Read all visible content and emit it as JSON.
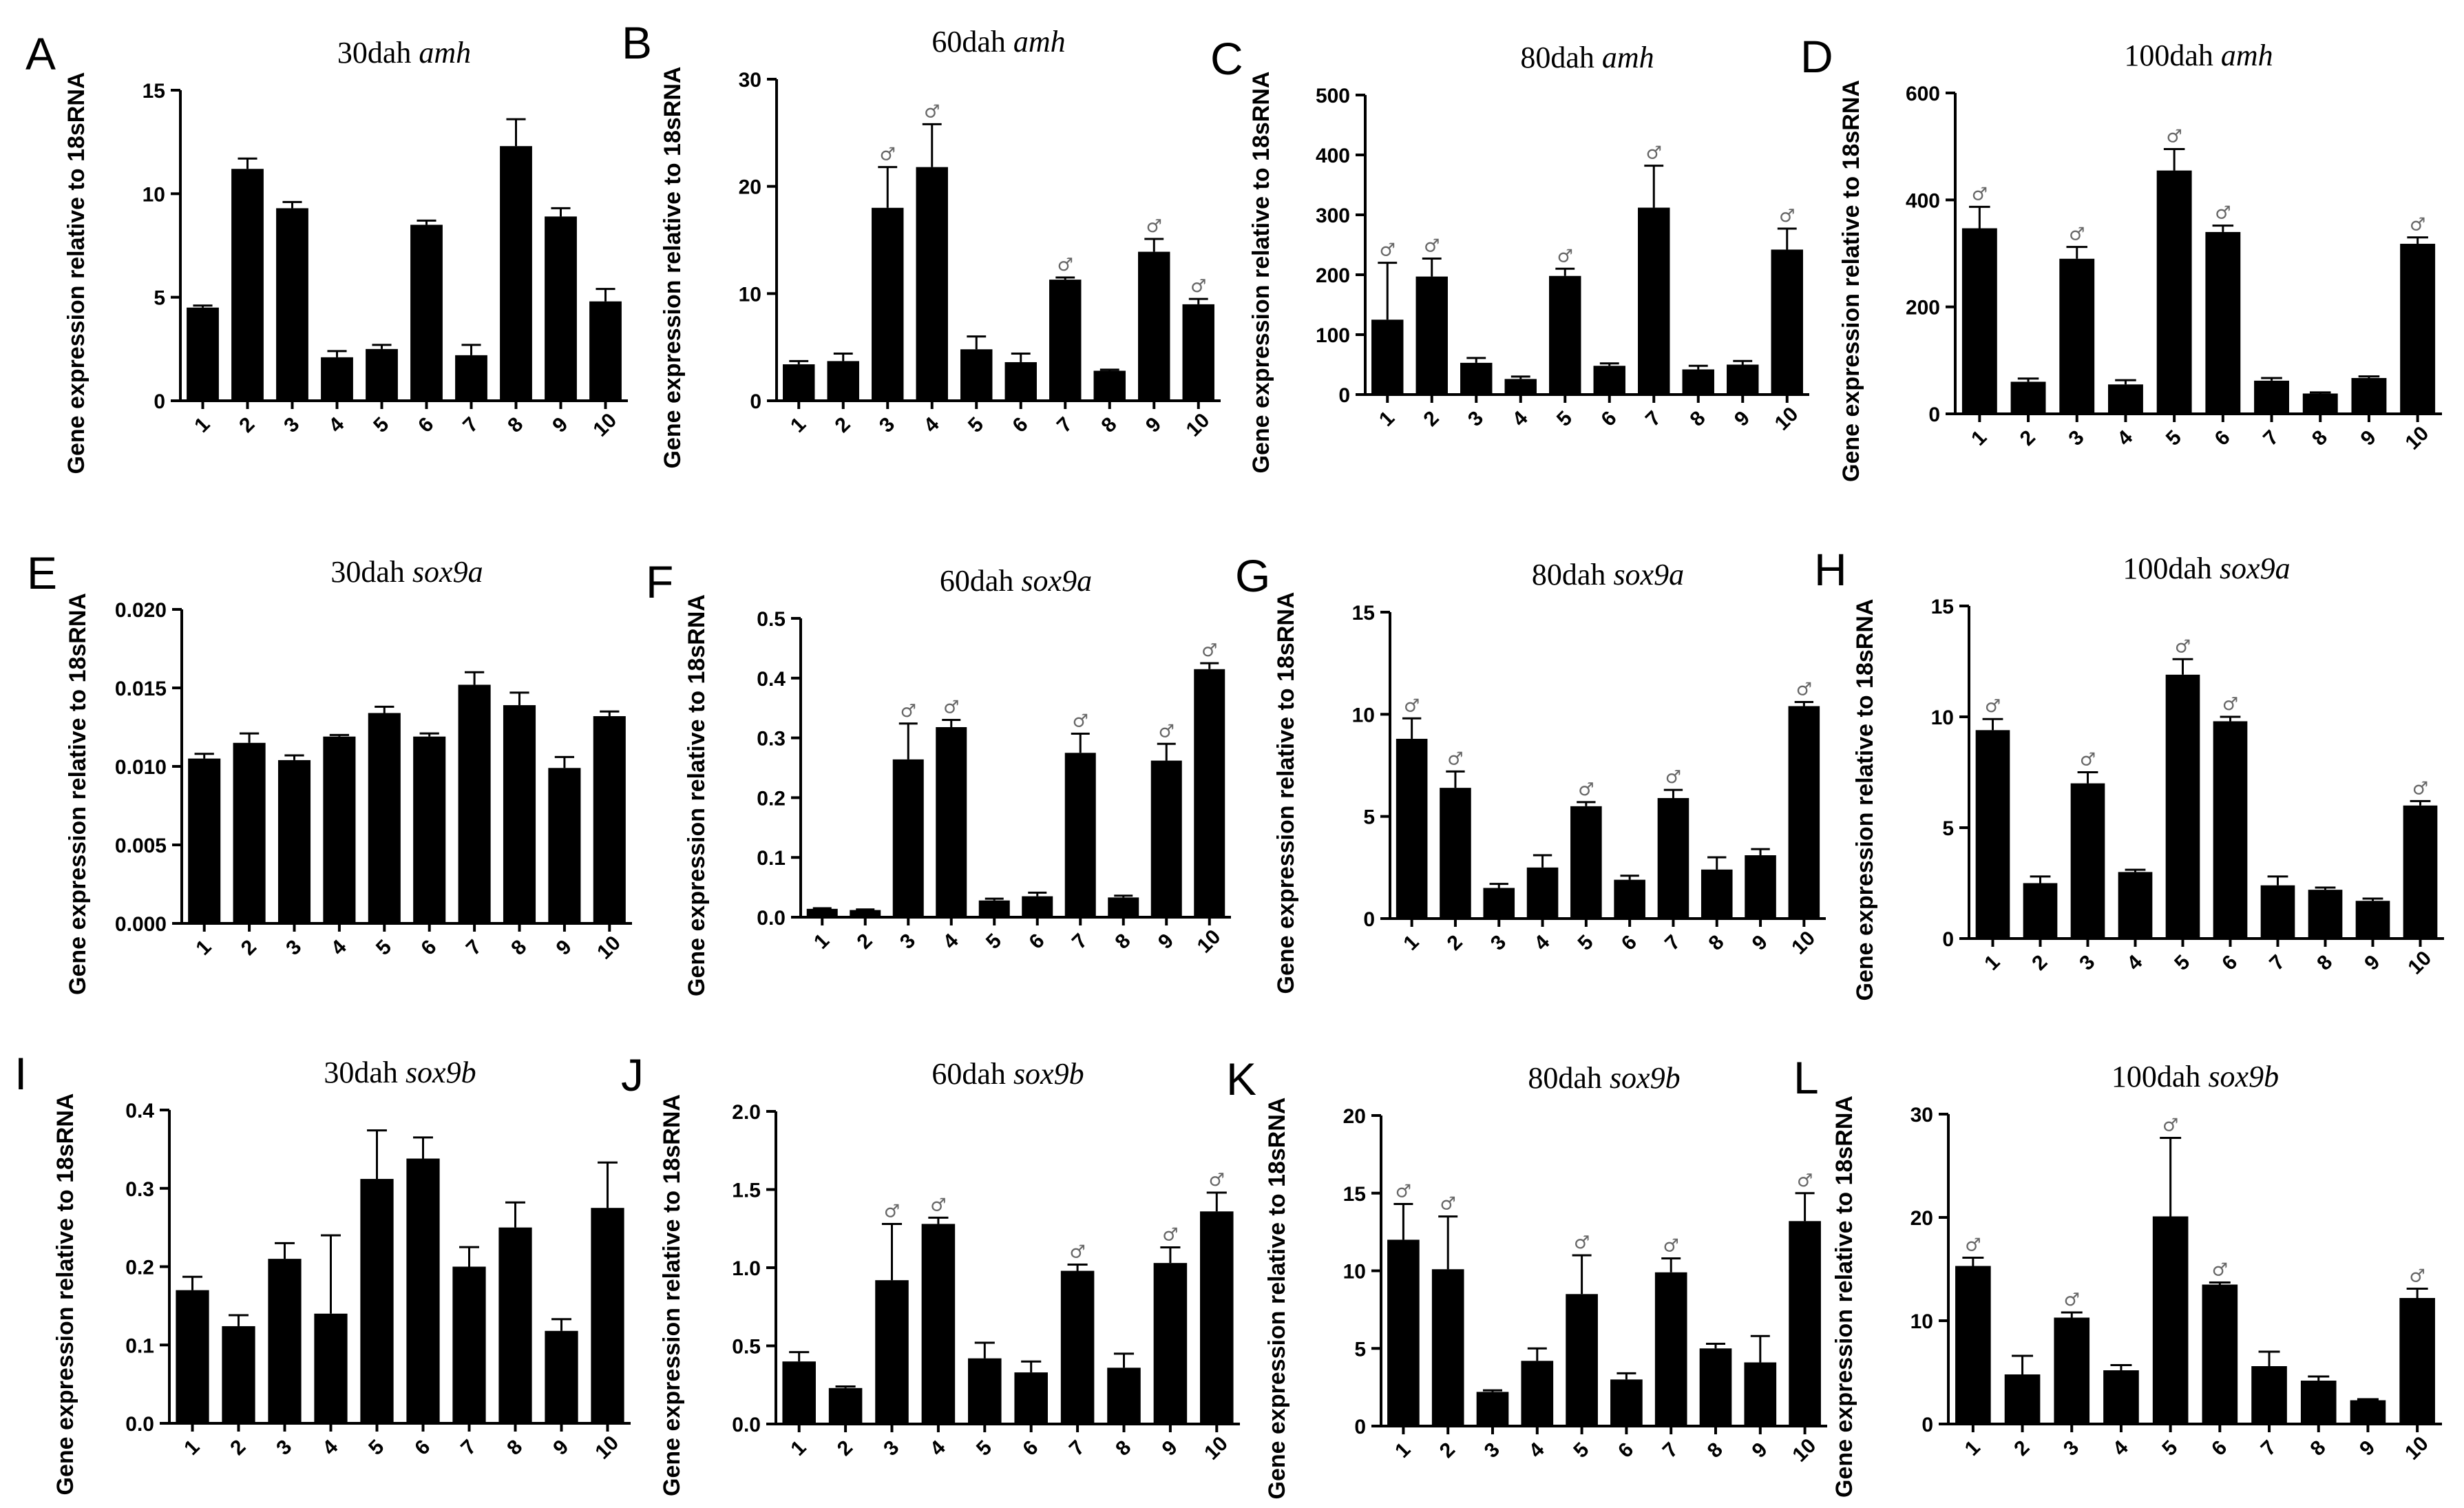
{
  "figure": {
    "ylabel": "Gene expression relative to 18sRNA",
    "male_symbol": "♂",
    "colors": {
      "bar": "#000000",
      "axis": "#000000",
      "marker": "#666666"
    }
  },
  "chart_data": [
    {
      "panel": "A",
      "type": "bar",
      "title_prefix": "30dah",
      "gene": "amh",
      "categories": [
        "1",
        "2",
        "3",
        "4",
        "5",
        "6",
        "7",
        "8",
        "9",
        "10"
      ],
      "values": [
        4.5,
        11.2,
        9.3,
        2.1,
        2.5,
        8.5,
        2.2,
        12.3,
        8.9,
        4.8
      ],
      "errors": [
        0.1,
        0.5,
        0.3,
        0.3,
        0.2,
        0.2,
        0.5,
        1.3,
        0.4,
        0.6
      ],
      "male": [],
      "ylim": [
        0,
        15
      ],
      "yticks": [
        0,
        5,
        10,
        15
      ],
      "ytick_labels": [
        "0",
        "5",
        "10",
        "15"
      ],
      "ylabel": "Gene expression relative to 18sRNA"
    },
    {
      "panel": "B",
      "type": "bar",
      "title_prefix": "60dah",
      "gene": "amh",
      "categories": [
        "1",
        "2",
        "3",
        "4",
        "5",
        "6",
        "7",
        "8",
        "9",
        "10"
      ],
      "values": [
        3.4,
        3.7,
        18.0,
        21.8,
        4.8,
        3.6,
        11.3,
        2.8,
        13.9,
        9.0
      ],
      "errors": [
        0.3,
        0.7,
        3.8,
        4.0,
        1.2,
        0.8,
        0.2,
        0.1,
        1.2,
        0.5
      ],
      "male": [
        3,
        4,
        7,
        9,
        10
      ],
      "ylim": [
        0,
        30
      ],
      "yticks": [
        0,
        10,
        20,
        30
      ],
      "ytick_labels": [
        "0",
        "10",
        "20",
        "30"
      ],
      "ylabel": "Gene expression relative to 18sRNA"
    },
    {
      "panel": "C",
      "type": "bar",
      "title_prefix": "80dah",
      "gene": "amh",
      "categories": [
        "1",
        "2",
        "3",
        "4",
        "5",
        "6",
        "7",
        "8",
        "9",
        "10"
      ],
      "values": [
        125,
        197,
        53,
        26,
        198,
        48,
        312,
        42,
        50,
        242
      ],
      "errors": [
        95,
        30,
        8,
        4,
        12,
        4,
        70,
        6,
        6,
        35
      ],
      "male": [
        1,
        2,
        5,
        7,
        10
      ],
      "ylim": [
        0,
        500
      ],
      "yticks": [
        0,
        100,
        200,
        300,
        400,
        500
      ],
      "ytick_labels": [
        "0",
        "100",
        "200",
        "300",
        "400",
        "500"
      ],
      "ylabel": "Gene expression relative to 18sRNA"
    },
    {
      "panel": "D",
      "type": "bar",
      "title_prefix": "100dah",
      "gene": "amh",
      "categories": [
        "1",
        "2",
        "3",
        "4",
        "5",
        "6",
        "7",
        "8",
        "9",
        "10"
      ],
      "values": [
        347,
        60,
        290,
        55,
        455,
        340,
        62,
        38,
        67,
        318
      ],
      "errors": [
        40,
        6,
        22,
        8,
        40,
        12,
        5,
        2,
        3,
        12
      ],
      "male": [
        1,
        3,
        5,
        6,
        10
      ],
      "ylim": [
        0,
        600
      ],
      "yticks": [
        0,
        200,
        400,
        600
      ],
      "ytick_labels": [
        "0",
        "200",
        "400",
        "600"
      ],
      "ylabel": "Gene expression relative to 18sRNA"
    },
    {
      "panel": "E",
      "type": "bar",
      "title_prefix": "30dah",
      "gene": "sox9a",
      "categories": [
        "1",
        "2",
        "3",
        "4",
        "5",
        "6",
        "7",
        "8",
        "9",
        "10"
      ],
      "values": [
        0.0105,
        0.0115,
        0.0104,
        0.0119,
        0.0134,
        0.0119,
        0.0152,
        0.0139,
        0.0099,
        0.0132
      ],
      "errors": [
        0.0003,
        0.0006,
        0.0003,
        0.0001,
        0.0004,
        0.0002,
        0.0008,
        0.0008,
        0.0007,
        0.0003
      ],
      "male": [],
      "ylim": [
        0,
        0.02
      ],
      "yticks": [
        0,
        0.005,
        0.01,
        0.015,
        0.02
      ],
      "ytick_labels": [
        "0.000",
        "0.005",
        "0.010",
        "0.015",
        "0.020"
      ],
      "ylabel": "Gene expression relative to 18sRNA"
    },
    {
      "panel": "F",
      "type": "bar",
      "title_prefix": "60dah",
      "gene": "sox9a",
      "categories": [
        "1",
        "2",
        "3",
        "4",
        "5",
        "6",
        "7",
        "8",
        "9",
        "10"
      ],
      "values": [
        0.014,
        0.012,
        0.264,
        0.318,
        0.028,
        0.035,
        0.275,
        0.033,
        0.262,
        0.415
      ],
      "errors": [
        0.001,
        0.001,
        0.06,
        0.012,
        0.003,
        0.006,
        0.032,
        0.003,
        0.028,
        0.01
      ],
      "male": [
        3,
        4,
        7,
        9,
        10
      ],
      "ylim": [
        0,
        0.5
      ],
      "yticks": [
        0,
        0.1,
        0.2,
        0.3,
        0.4,
        0.5
      ],
      "ytick_labels": [
        "0.0",
        "0.1",
        "0.2",
        "0.3",
        "0.4",
        "0.5"
      ],
      "ylabel": "Gene expression relative to 18sRNA"
    },
    {
      "panel": "G",
      "type": "bar",
      "title_prefix": "80dah",
      "gene": "sox9a",
      "categories": [
        "1",
        "2",
        "3",
        "4",
        "5",
        "6",
        "7",
        "8",
        "9",
        "10"
      ],
      "values": [
        8.8,
        6.4,
        1.5,
        2.5,
        5.5,
        1.9,
        5.9,
        2.4,
        3.1,
        10.4
      ],
      "errors": [
        1.0,
        0.8,
        0.2,
        0.6,
        0.2,
        0.2,
        0.4,
        0.6,
        0.3,
        0.2
      ],
      "male": [
        1,
        2,
        5,
        7,
        10
      ],
      "ylim": [
        0,
        15
      ],
      "yticks": [
        0,
        5,
        10,
        15
      ],
      "ytick_labels": [
        "0",
        "5",
        "10",
        "15"
      ],
      "ylabel": "Gene expression relative to 18sRNA"
    },
    {
      "panel": "H",
      "type": "bar",
      "title_prefix": "100dah",
      "gene": "sox9a",
      "categories": [
        "1",
        "2",
        "3",
        "4",
        "5",
        "6",
        "7",
        "8",
        "9",
        "10"
      ],
      "values": [
        9.4,
        2.5,
        7.0,
        3.0,
        11.9,
        9.8,
        2.4,
        2.2,
        1.7,
        6.0
      ],
      "errors": [
        0.5,
        0.3,
        0.5,
        0.1,
        0.7,
        0.2,
        0.4,
        0.1,
        0.1,
        0.2
      ],
      "male": [
        1,
        3,
        5,
        6,
        10
      ],
      "ylim": [
        0,
        15
      ],
      "yticks": [
        0,
        5,
        10,
        15
      ],
      "ytick_labels": [
        "0",
        "5",
        "10",
        "15"
      ],
      "ylabel": "Gene expression relative to 18sRNA"
    },
    {
      "panel": "I",
      "type": "bar",
      "title_prefix": "30dah",
      "gene": "sox9b",
      "categories": [
        "1",
        "2",
        "3",
        "4",
        "5",
        "6",
        "7",
        "8",
        "9",
        "10"
      ],
      "values": [
        0.17,
        0.124,
        0.21,
        0.14,
        0.312,
        0.338,
        0.2,
        0.25,
        0.118,
        0.275
      ],
      "errors": [
        0.017,
        0.014,
        0.02,
        0.1,
        0.062,
        0.027,
        0.025,
        0.032,
        0.015,
        0.058
      ],
      "male": [],
      "ylim": [
        0,
        0.4
      ],
      "yticks": [
        0,
        0.1,
        0.2,
        0.3,
        0.4
      ],
      "ytick_labels": [
        "0.0",
        "0.1",
        "0.2",
        "0.3",
        "0.4"
      ],
      "ylabel": "Gene expression relative to 18sRNA"
    },
    {
      "panel": "J",
      "type": "bar",
      "title_prefix": "60dah",
      "gene": "sox9b",
      "categories": [
        "1",
        "2",
        "3",
        "4",
        "5",
        "6",
        "7",
        "8",
        "9",
        "10"
      ],
      "values": [
        0.4,
        0.23,
        0.92,
        1.28,
        0.42,
        0.33,
        0.98,
        0.36,
        1.03,
        1.36
      ],
      "errors": [
        0.06,
        0.01,
        0.36,
        0.04,
        0.1,
        0.07,
        0.04,
        0.09,
        0.1,
        0.12
      ],
      "male": [
        3,
        4,
        7,
        9,
        10
      ],
      "ylim": [
        0,
        2.0
      ],
      "yticks": [
        0,
        0.5,
        1.0,
        1.5,
        2.0
      ],
      "ytick_labels": [
        "0.0",
        "0.5",
        "1.0",
        "1.5",
        "2.0"
      ],
      "ylabel": "Gene expression relative to 18sRNA"
    },
    {
      "panel": "K",
      "type": "bar",
      "title_prefix": "80dah",
      "gene": "sox9b",
      "categories": [
        "1",
        "2",
        "3",
        "4",
        "5",
        "6",
        "7",
        "8",
        "9",
        "10"
      ],
      "values": [
        12.0,
        10.1,
        2.2,
        4.2,
        8.5,
        3.0,
        9.9,
        5.0,
        4.1,
        13.2
      ],
      "errors": [
        2.3,
        3.4,
        0.1,
        0.8,
        2.5,
        0.4,
        0.9,
        0.3,
        1.7,
        1.8
      ],
      "male": [
        1,
        2,
        5,
        7,
        10
      ],
      "ylim": [
        0,
        20
      ],
      "yticks": [
        0,
        5,
        10,
        15,
        20
      ],
      "ytick_labels": [
        "0",
        "5",
        "10",
        "15",
        "20"
      ],
      "ylabel": "Gene expression relative to 18sRNA"
    },
    {
      "panel": "L",
      "type": "bar",
      "title_prefix": "100dah",
      "gene": "sox9b",
      "categories": [
        "1",
        "2",
        "3",
        "4",
        "5",
        "6",
        "7",
        "8",
        "9",
        "10"
      ],
      "values": [
        15.3,
        4.8,
        10.3,
        5.2,
        20.1,
        13.5,
        5.6,
        4.2,
        2.3,
        12.2
      ],
      "errors": [
        0.8,
        1.8,
        0.5,
        0.5,
        7.6,
        0.2,
        1.4,
        0.4,
        0.1,
        0.9
      ],
      "male": [
        1,
        3,
        5,
        6,
        10
      ],
      "ylim": [
        0,
        30
      ],
      "yticks": [
        0,
        10,
        20,
        30
      ],
      "ytick_labels": [
        "0",
        "10",
        "20",
        "30"
      ],
      "ylabel": "Gene expression relative to 18sRNA"
    }
  ]
}
